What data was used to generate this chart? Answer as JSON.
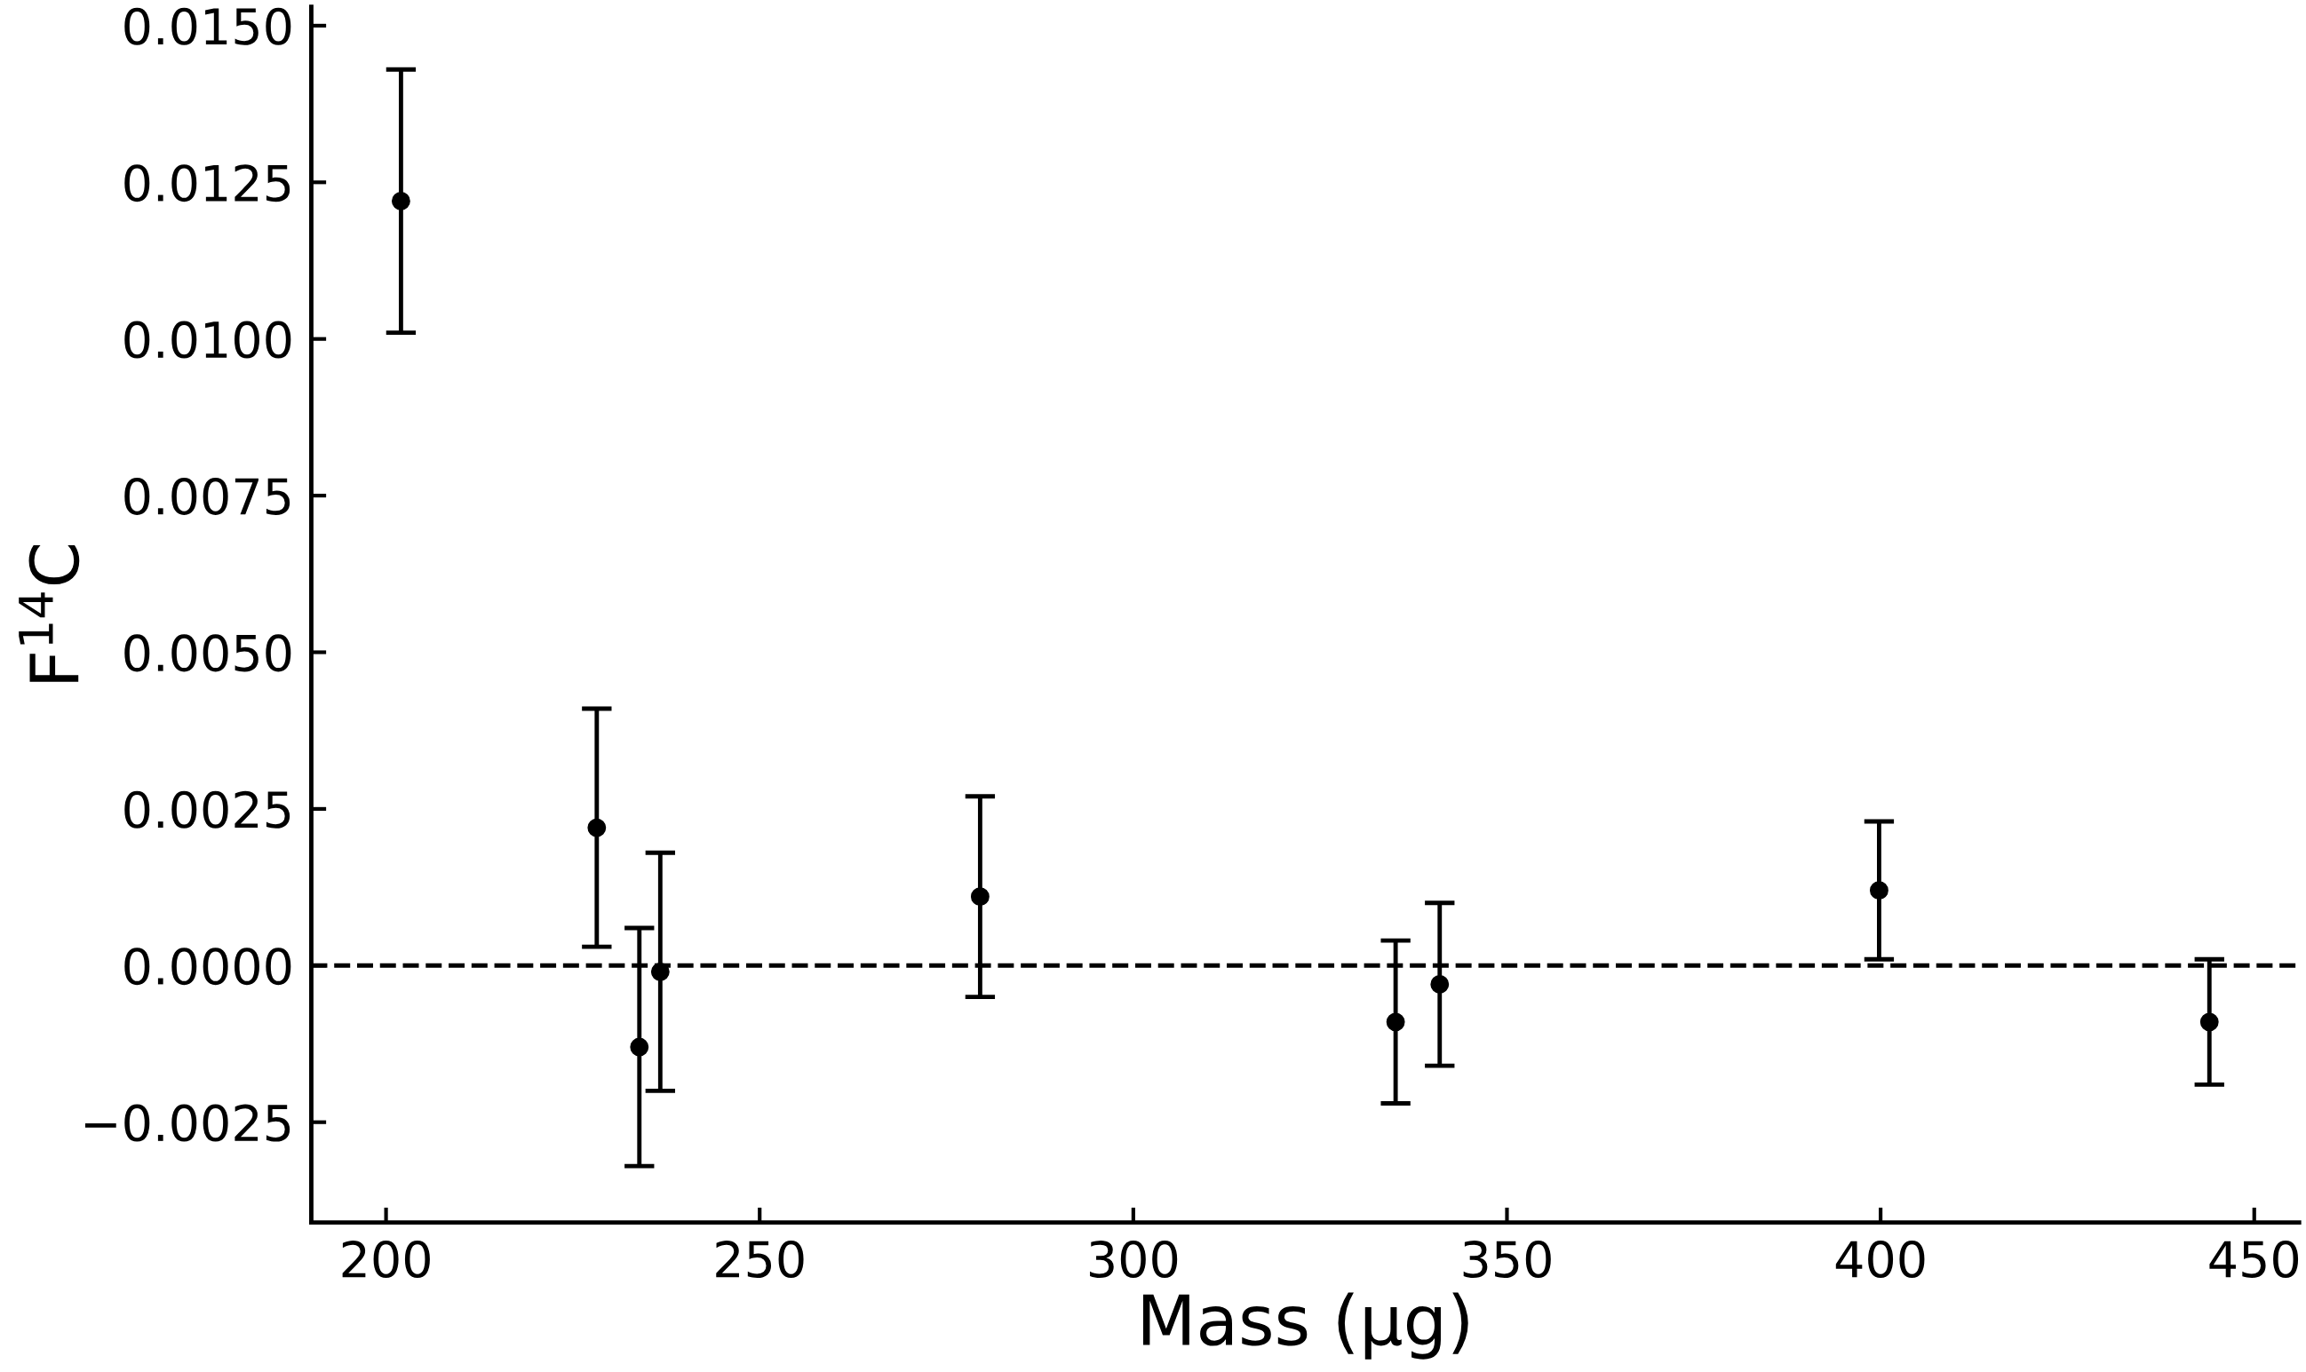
{
  "chart_data": {
    "type": "scatter",
    "xlabel": "Mass (µg)",
    "ylabel": "F$^{14}$C",
    "x": [
      202.0,
      228.2,
      233.9,
      236.7,
      279.5,
      335.1,
      341.0,
      399.8,
      444.0
    ],
    "series": [
      {
        "color": "#000000",
        "values": [
          0.0122,
          0.0022,
          -0.0013,
          -0.0001,
          0.0011,
          -0.0009,
          -0.0003,
          0.0012,
          -0.0009
        ],
        "errors": [
          0.0021,
          0.0019,
          0.0019,
          0.0019,
          0.0016,
          0.0013,
          0.0013,
          0.0011,
          0.001
        ]
      }
    ],
    "xlim": [
      190,
      456
    ],
    "ylim": [
      -0.0041,
      0.0153
    ],
    "xticks": [
      200,
      250,
      300,
      350,
      400,
      450
    ],
    "yticks": [
      {
        "value": -0.0025,
        "label": "−0.0025"
      },
      {
        "value": 0,
        "label": "0.0000"
      },
      {
        "value": 0.0025,
        "label": "0.0025"
      },
      {
        "value": 0.005,
        "label": "0.0050"
      },
      {
        "value": 0.0075,
        "label": "0.0075"
      },
      {
        "value": 0.01,
        "label": "0.0100"
      },
      {
        "value": 0.0125,
        "label": "0.0125"
      },
      {
        "value": 0.015,
        "label": "0.0150"
      }
    ],
    "ref_lines": [
      {
        "axis": "y",
        "value": 0,
        "color": "#000000",
        "line_style": "dashed"
      }
    ],
    "marker": "circle",
    "grid": false
  }
}
